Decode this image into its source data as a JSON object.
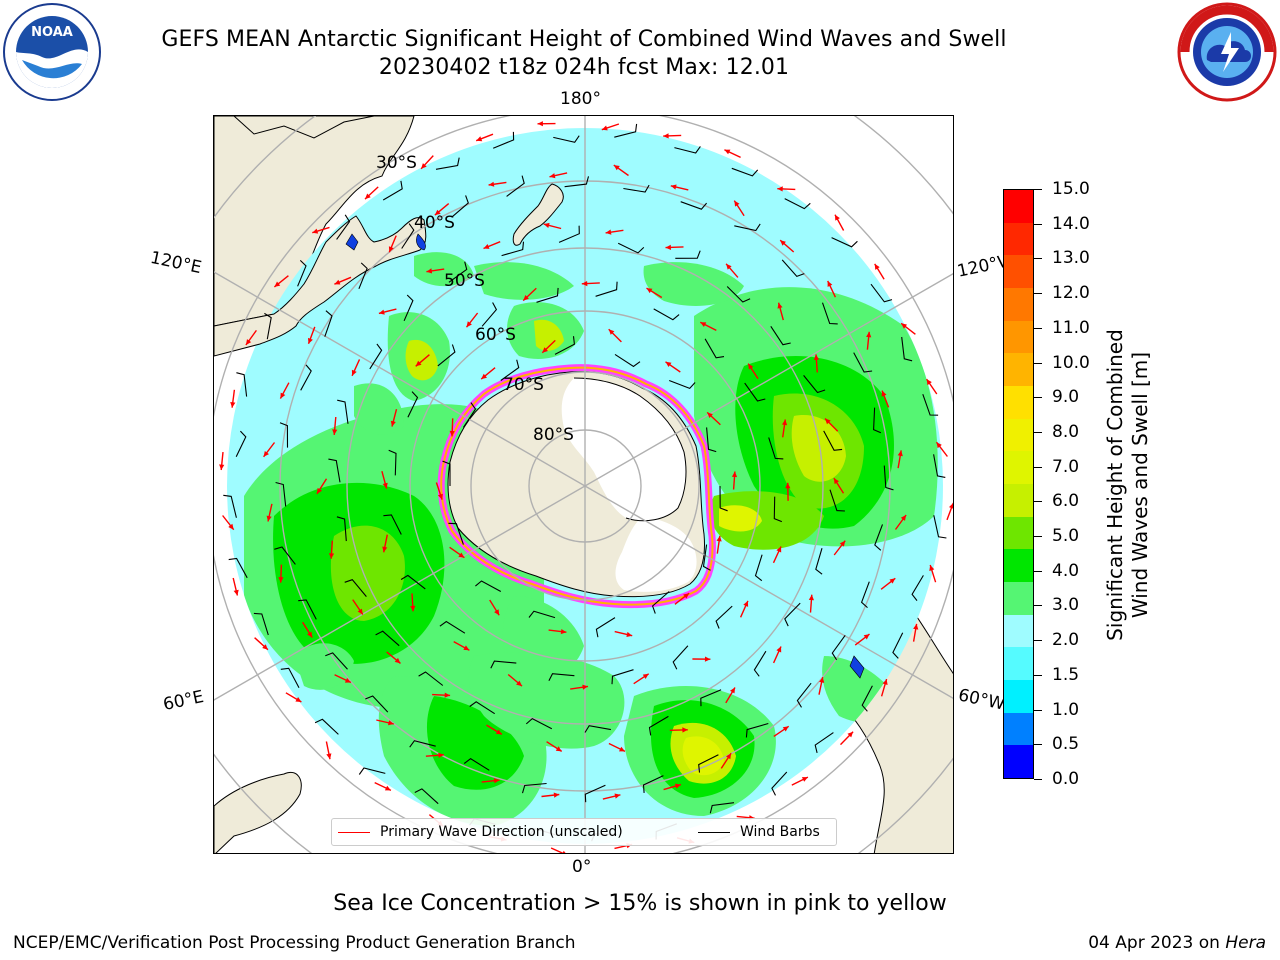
{
  "title_line1": "GEFS MEAN Antarctic Significant Height of Combined Wind Waves and Swell",
  "title_line2": "20230402 t18z 024h fcst   Max: 12.01",
  "longitude_labels": {
    "top": "180°",
    "bottom": "0°",
    "upper_left": "120°E",
    "lower_left": "60°E",
    "upper_right": "120°W",
    "lower_right": "60°W"
  },
  "latitude_labels": [
    "30°S",
    "40°S",
    "50°S",
    "60°S",
    "70°S",
    "80°S"
  ],
  "legend": {
    "wave_direction": "Primary Wave Direction (unscaled)",
    "wind_barbs": "Wind Barbs"
  },
  "colorbar": {
    "title_line1": "Significant Height of Combined",
    "title_line2": "Wind Waves and Swell [m]",
    "ticks": [
      "15.0",
      "14.0",
      "13.0",
      "12.0",
      "11.0",
      "10.0",
      "9.0",
      "8.0",
      "7.0",
      "6.0",
      "5.0",
      "4.0",
      "3.0",
      "2.0",
      "1.5",
      "1.0",
      "0.5",
      "0.0"
    ],
    "colors_top_to_bottom": [
      "#ff0000",
      "#ff2800",
      "#ff5000",
      "#ff7800",
      "#ff9600",
      "#ffb400",
      "#ffe000",
      "#f0f000",
      "#dff500",
      "#c6f000",
      "#6ee600",
      "#00e600",
      "#55f573",
      "#9ffcff",
      "#55fbff",
      "#00f0ff",
      "#0080ff",
      "#0000ff"
    ]
  },
  "note": "Sea Ice Concentration > 15% is shown in pink to yellow",
  "footer": {
    "left": "NCEP/EMC/Verification Post Processing Product Generation Branch",
    "date": "04 Apr 2023 on ",
    "machine": "Hera"
  },
  "colors": {
    "land": "#efebd9",
    "ocean_low": "#9ffcff",
    "ocean_mid": "#55f573",
    "ocean_high": "#00e600",
    "peak": "#dff500",
    "sea_ice": "#ff44ff",
    "wave_arrow": "#ff0000"
  },
  "icons": {
    "noaa": "noaa-logo",
    "nws": "nws-logo"
  }
}
